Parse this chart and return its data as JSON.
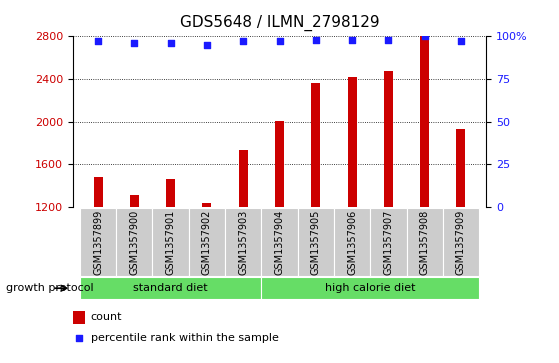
{
  "title": "GDS5648 / ILMN_2798129",
  "samples": [
    "GSM1357899",
    "GSM1357900",
    "GSM1357901",
    "GSM1357902",
    "GSM1357903",
    "GSM1357904",
    "GSM1357905",
    "GSM1357906",
    "GSM1357907",
    "GSM1357908",
    "GSM1357909"
  ],
  "counts": [
    1480,
    1310,
    1460,
    1235,
    1730,
    2010,
    2360,
    2420,
    2470,
    2800,
    1930
  ],
  "percentiles": [
    97,
    96,
    96,
    95,
    97,
    97,
    98,
    98,
    98,
    100,
    97
  ],
  "bar_color": "#cc0000",
  "percentile_color": "#1a1aff",
  "ylim_left": [
    1200,
    2800
  ],
  "ylim_right": [
    0,
    100
  ],
  "yticks_left": [
    1200,
    1600,
    2000,
    2400,
    2800
  ],
  "yticks_right": [
    0,
    25,
    50,
    75,
    100
  ],
  "ytick_labels_right": [
    "0",
    "25",
    "50",
    "75",
    "100%"
  ],
  "grid_color": "#000000",
  "standard_diet_indices": [
    0,
    1,
    2,
    3,
    4
  ],
  "high_calorie_indices": [
    5,
    6,
    7,
    8,
    9,
    10
  ],
  "standard_diet_label": "standard diet",
  "high_calorie_label": "high calorie diet",
  "group_label": "growth protocol",
  "legend_count_label": "count",
  "legend_percentile_label": "percentile rank within the sample",
  "green_color": "#66dd66",
  "tick_area_color": "#cccccc",
  "title_fontsize": 11,
  "tick_fontsize": 8,
  "label_fontsize": 7,
  "group_fontsize": 8,
  "bar_width": 0.25
}
